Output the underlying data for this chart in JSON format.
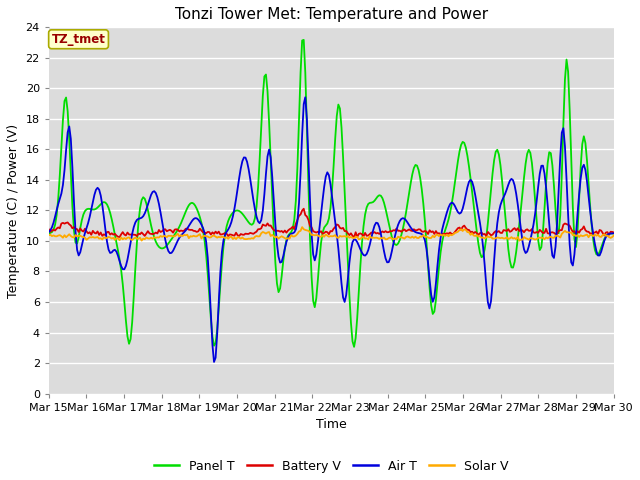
{
  "title": "Tonzi Tower Met: Temperature and Power",
  "xlabel": "Time",
  "ylabel": "Temperature (C) / Power (V)",
  "ylim": [
    0,
    24
  ],
  "yticks": [
    0,
    2,
    4,
    6,
    8,
    10,
    12,
    14,
    16,
    18,
    20,
    22,
    24
  ],
  "xtick_labels": [
    "Mar 15",
    "Mar 16",
    "Mar 17",
    "Mar 18",
    "Mar 19",
    "Mar 20",
    "Mar 21",
    "Mar 22",
    "Mar 23",
    "Mar 24",
    "Mar 25",
    "Mar 26",
    "Mar 27",
    "Mar 28",
    "Mar 29",
    "Mar 30"
  ],
  "bg_color": "#dcdcdc",
  "fig_color": "#ffffff",
  "grid_color": "#ffffff",
  "annotation_text": "TZ_tmet",
  "annotation_bg": "#ffffcc",
  "annotation_border": "#aaaa00",
  "annotation_fg": "#990000",
  "colors": {
    "panel_t": "#00dd00",
    "battery_v": "#dd0000",
    "air_t": "#0000dd",
    "solar_v": "#ffaa00"
  },
  "legend_labels": [
    "Panel T",
    "Battery V",
    "Air T",
    "Solar V"
  ],
  "linewidth": 1.3
}
